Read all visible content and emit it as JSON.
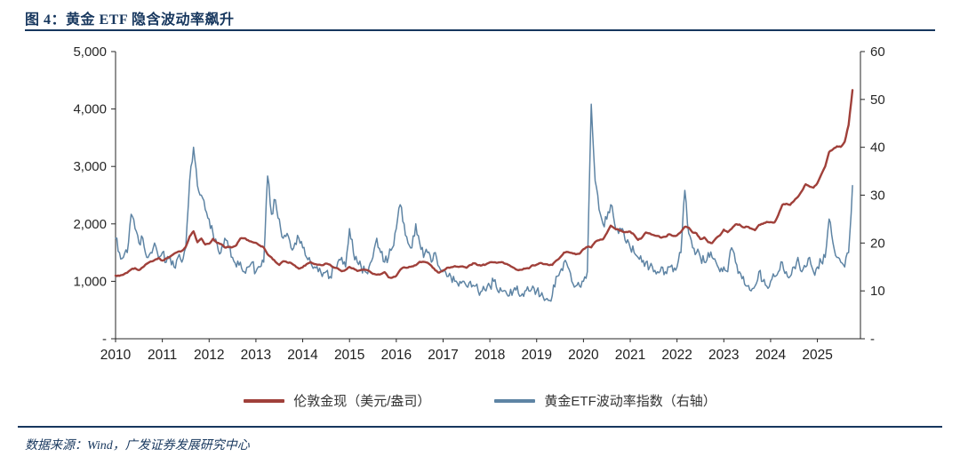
{
  "page": {
    "title": "图 4：黄金 ETF 隐含波动率飙升",
    "source_note": "数据来源：Wind，广发证券发展研究中心"
  },
  "colors": {
    "title_navy": "#17375e",
    "axis": "#262626",
    "gold_line": "#a0403a",
    "vol_line": "#5e84a4"
  },
  "chart_data": {
    "type": "line",
    "title": "黄金ETF隐含波动率飙升",
    "x_start": 2010.0,
    "x_step": 0.08333,
    "x_domain": [
      2010.0,
      2025.92
    ],
    "x_tick_labels": [
      "2010",
      "2011",
      "2012",
      "2013",
      "2014",
      "2015",
      "2016",
      "2017",
      "2018",
      "2019",
      "2020",
      "2021",
      "2022",
      "2023",
      "2024",
      "2025"
    ],
    "grid": false,
    "legend_position": "bottom",
    "left_axis": {
      "min": 0,
      "max": 5000,
      "tick_labels": [
        "-",
        "1,000",
        "2,000",
        "3,000",
        "4,000",
        "5,000"
      ]
    },
    "right_axis": {
      "min": 0,
      "max": 60,
      "tick_labels": [
        "-",
        "10",
        "20",
        "30",
        "40",
        "50",
        "60"
      ]
    },
    "series": [
      {
        "name": "伦敦金现（美元/盎司）",
        "axis": "left",
        "color": "#a0403a",
        "width": 2.4,
        "jitter": 8,
        "values": [
          1100,
          1095,
          1115,
          1150,
          1205,
          1230,
          1195,
          1245,
          1305,
          1345,
          1370,
          1405,
          1360,
          1400,
          1430,
          1480,
          1515,
          1530,
          1600,
          1780,
          1870,
          1680,
          1745,
          1640,
          1655,
          1740,
          1670,
          1650,
          1590,
          1600,
          1595,
          1630,
          1745,
          1750,
          1715,
          1685,
          1670,
          1625,
          1590,
          1470,
          1415,
          1340,
          1285,
          1350,
          1330,
          1320,
          1275,
          1220,
          1245,
          1300,
          1335,
          1300,
          1290,
          1280,
          1310,
          1290,
          1240,
          1225,
          1175,
          1200,
          1250,
          1225,
          1180,
          1200,
          1200,
          1180,
          1130,
          1115,
          1125,
          1160,
          1070,
          1065,
          1095,
          1200,
          1245,
          1240,
          1260,
          1280,
          1340,
          1340,
          1325,
          1270,
          1190,
          1150,
          1190,
          1235,
          1245,
          1265,
          1250,
          1260,
          1235,
          1285,
          1315,
          1280,
          1280,
          1295,
          1330,
          1330,
          1325,
          1335,
          1305,
          1280,
          1240,
          1200,
          1200,
          1220,
          1225,
          1280,
          1290,
          1320,
          1300,
          1285,
          1285,
          1360,
          1415,
          1500,
          1510,
          1495,
          1470,
          1480,
          1560,
          1600,
          1590,
          1685,
          1715,
          1730,
          1840,
          1970,
          1920,
          1900,
          1865,
          1860,
          1865,
          1810,
          1720,
          1760,
          1850,
          1835,
          1805,
          1790,
          1760,
          1775,
          1820,
          1790,
          1800,
          1860,
          1950,
          1935,
          1850,
          1835,
          1735,
          1765,
          1680,
          1665,
          1750,
          1800,
          1900,
          1855,
          1915,
          1990,
          1990,
          1940,
          1950,
          1920,
          1890,
          1980,
          2000,
          2035,
          2030,
          2025,
          2160,
          2330,
          2350,
          2330,
          2400,
          2470,
          2570,
          2690,
          2650,
          2630,
          2710,
          2860,
          3000,
          3250,
          3300,
          3350,
          3340,
          3430,
          3720,
          4330
        ]
      },
      {
        "name": "黄金ETF波动率指数（右轴）",
        "axis": "right",
        "color": "#5e84a4",
        "width": 1.5,
        "jitter": 1.1,
        "values": [
          21,
          18,
          17,
          18,
          26,
          23,
          20,
          21,
          17,
          18,
          20,
          17,
          18,
          16,
          17,
          15,
          17,
          16,
          19,
          33,
          40,
          32,
          30,
          27,
          25,
          22,
          20,
          18,
          21,
          19,
          17,
          15,
          16,
          14,
          15,
          16,
          14,
          15,
          16,
          34,
          26,
          29,
          25,
          21,
          22,
          19,
          20,
          21,
          19,
          17,
          16,
          15,
          14,
          13,
          14,
          13,
          15,
          16,
          17,
          15,
          23,
          18,
          16,
          15,
          14,
          15,
          17,
          21,
          18,
          16,
          17,
          19,
          23,
          28,
          24,
          20,
          19,
          24,
          20,
          17,
          18,
          16,
          18,
          15,
          14,
          13,
          13,
          12,
          11,
          12,
          11,
          12,
          11,
          10,
          10,
          10,
          11,
          12,
          10,
          10,
          10,
          9,
          10,
          11,
          9,
          10,
          10,
          11,
          10,
          9,
          8,
          8,
          9,
          13,
          14,
          16,
          15,
          12,
          11,
          11,
          12,
          14,
          49,
          33,
          27,
          24,
          25,
          28,
          24,
          22,
          23,
          20,
          19,
          18,
          17,
          16,
          16,
          15,
          14,
          14,
          15,
          14,
          15,
          14,
          15,
          18,
          31,
          22,
          19,
          18,
          17,
          16,
          18,
          17,
          16,
          14,
          15,
          14,
          19,
          16,
          14,
          13,
          11,
          10,
          11,
          14,
          12,
          11,
          12,
          13,
          14,
          16,
          14,
          13,
          15,
          17,
          14,
          15,
          17,
          14,
          15,
          16,
          17,
          25,
          20,
          17,
          16,
          15,
          18,
          32
        ]
      }
    ]
  }
}
